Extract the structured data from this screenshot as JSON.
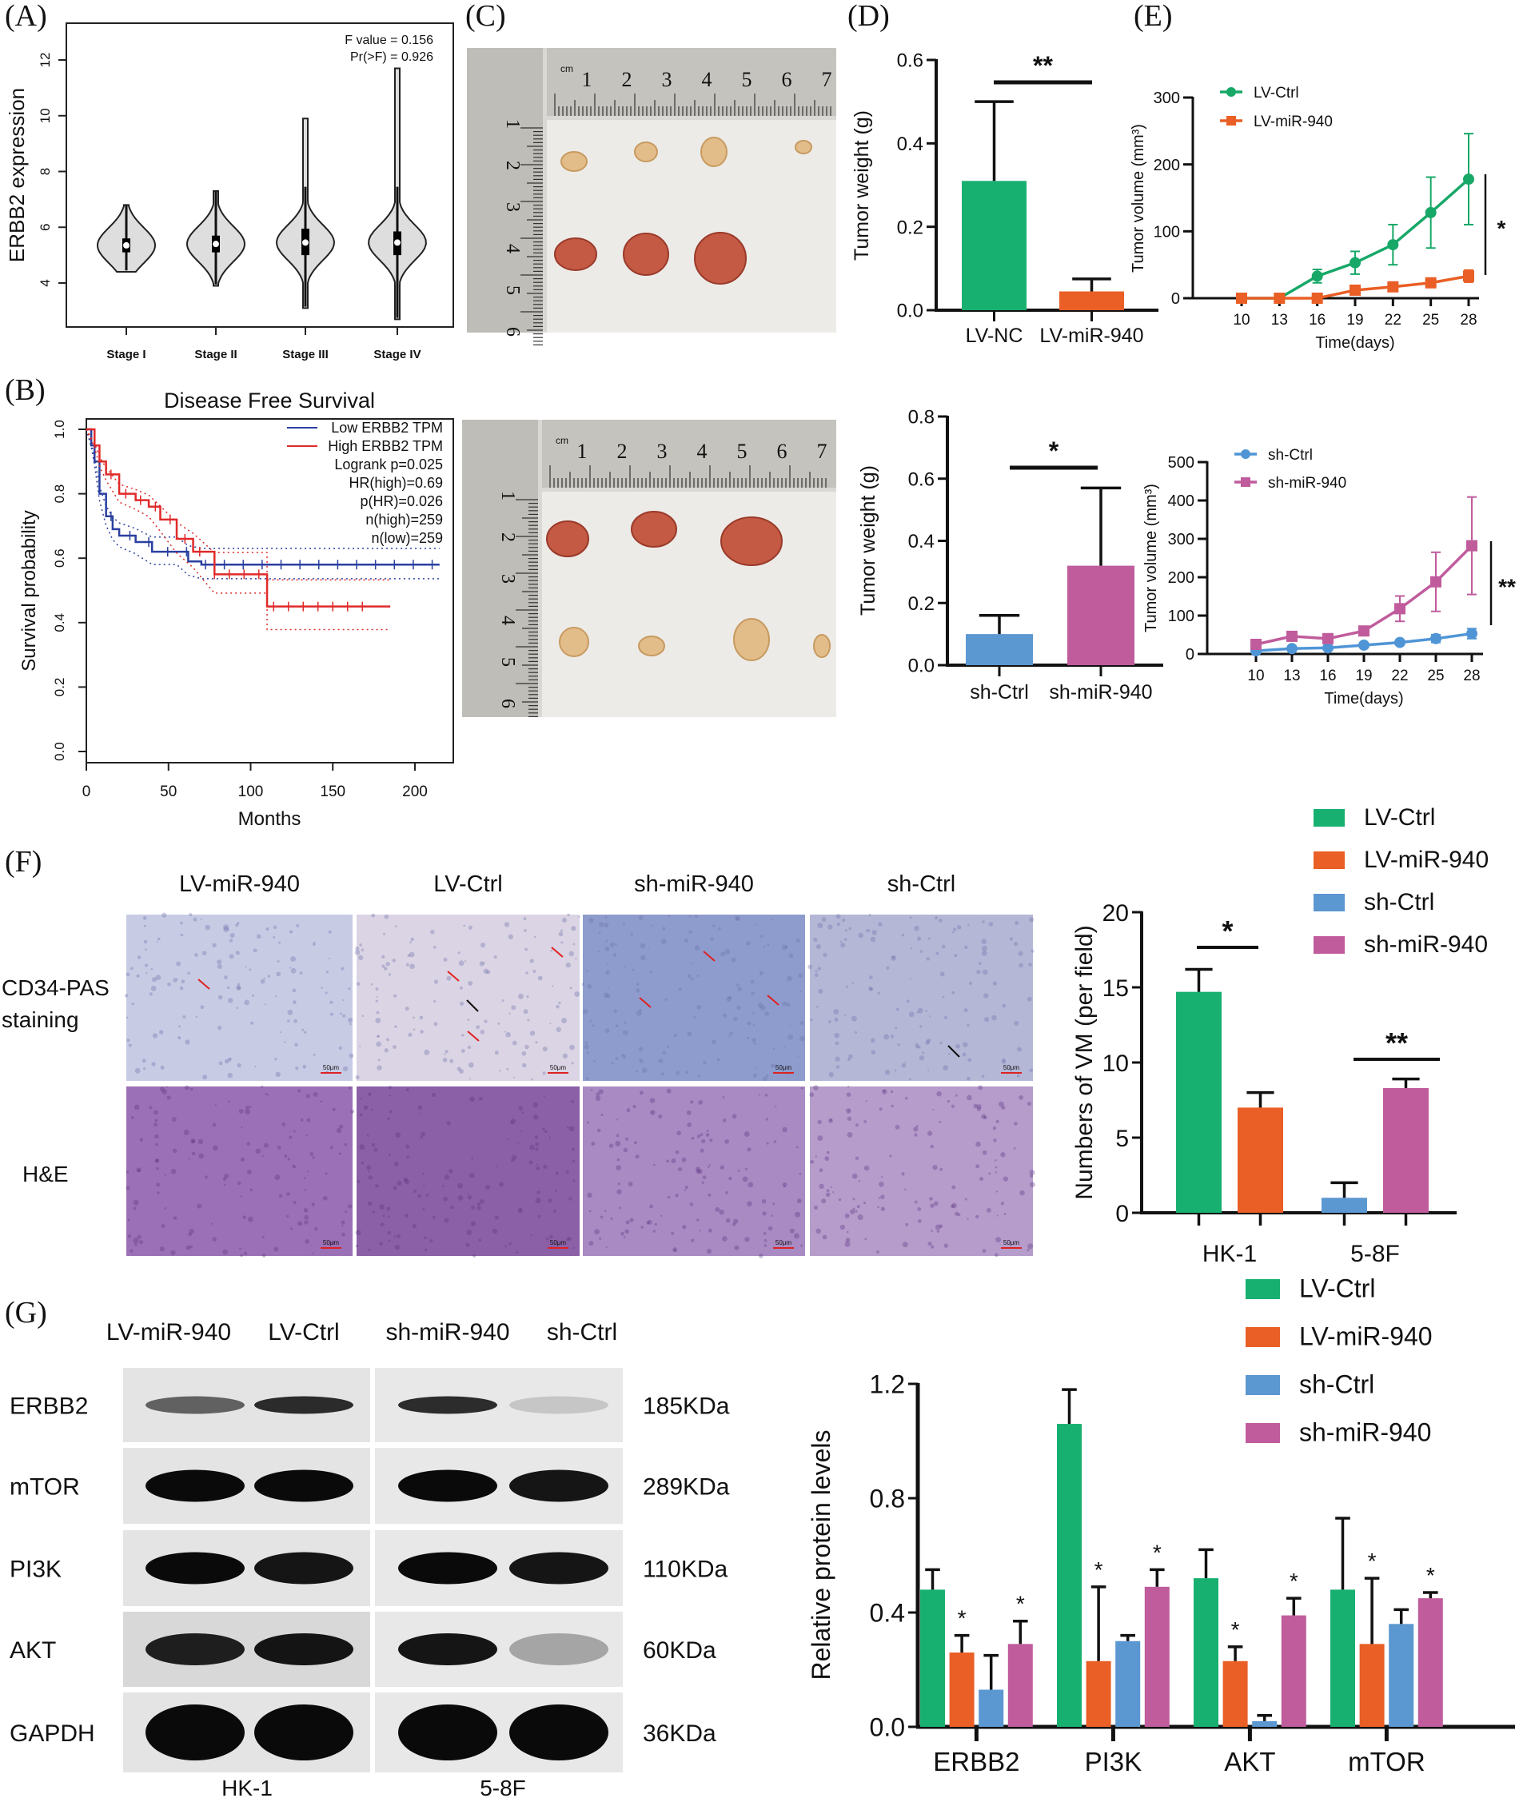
{
  "panel_labels": [
    "(A)",
    "(B)",
    "(C)",
    "(D)",
    "(E)",
    "(F)",
    "(G)"
  ],
  "photos": {
    "ruler_unit": "cm",
    "ruler_top": [
      "1",
      "2",
      "3",
      "4",
      "5",
      "6",
      "7"
    ],
    "ruler_left": [
      "1",
      "2",
      "3",
      "4",
      "5",
      "6"
    ]
  },
  "micrographs": {
    "columns": [
      "LV-miR-940",
      "LV-Ctrl",
      "sh-miR-940",
      "sh-Ctrl"
    ],
    "rows": [
      "CD34-PAS staining",
      "H&E"
    ],
    "scale_bar": "50μm"
  },
  "blots": {
    "lanes": [
      "LV-miR-940",
      "LV-Ctrl",
      "sh-miR-940",
      "sh-Ctrl"
    ],
    "cell_lines": [
      "HK-1",
      "5-8F"
    ],
    "rows": [
      {
        "protein": "ERBB2",
        "size": "185KDa",
        "intensity": [
          0.6,
          0.85,
          0.85,
          0.15
        ]
      },
      {
        "protein": "mTOR",
        "size": "289KDa",
        "intensity": [
          1,
          1,
          1,
          0.95
        ]
      },
      {
        "protein": "PI3K",
        "size": "110KDa",
        "intensity": [
          1,
          0.95,
          1,
          0.95
        ]
      },
      {
        "protein": "AKT",
        "size": "60KDa",
        "intensity": [
          0.9,
          0.95,
          0.95,
          0.3
        ]
      },
      {
        "protein": "GAPDH",
        "size": "36KDa",
        "intensity": [
          1,
          1,
          1,
          1
        ]
      }
    ]
  },
  "chart_data": [
    {
      "type": "violin",
      "ylabel": "ERBB2 expression",
      "yticks": [
        4,
        6,
        8,
        10,
        12
      ],
      "ylim": [
        2.5,
        13.5
      ],
      "categories": [
        "Stage I",
        "Stage II",
        "Stage III",
        "Stage IV"
      ],
      "median": [
        5.35,
        5.4,
        5.45,
        5.45
      ],
      "q1": [
        5.1,
        5.1,
        5.0,
        5.0
      ],
      "q3": [
        5.6,
        5.7,
        5.95,
        5.85
      ],
      "min": [
        4.4,
        3.9,
        3.1,
        2.7
      ],
      "max": [
        6.8,
        7.3,
        9.9,
        11.7
      ],
      "annotation": [
        "F value = 0.156",
        "Pr(>F) = 0.926"
      ]
    },
    {
      "type": "line",
      "title": "Disease Free Survival",
      "xlabel": "Months",
      "ylabel": "Survival probability",
      "xticks": [
        0,
        50,
        100,
        150,
        200
      ],
      "yticks": [
        "0.0",
        "0.2",
        "0.4",
        "0.6",
        "0.8",
        "1.0"
      ],
      "xlim": [
        0,
        220
      ],
      "ylim": [
        0,
        1
      ],
      "series": [
        {
          "name": "Low ERBB2 TPM",
          "color": "#2b3fa0",
          "points": [
            [
              0,
              1
            ],
            [
              3,
              0.95
            ],
            [
              5,
              0.9
            ],
            [
              8,
              0.8
            ],
            [
              12,
              0.73
            ],
            [
              16,
              0.69
            ],
            [
              20,
              0.67
            ],
            [
              30,
              0.65
            ],
            [
              40,
              0.62
            ],
            [
              55,
              0.62
            ],
            [
              62,
              0.59
            ],
            [
              70,
              0.58
            ],
            [
              215,
              0.58
            ]
          ]
        },
        {
          "name": "High ERBB2 TPM",
          "color": "#e02a2a",
          "points": [
            [
              0,
              1
            ],
            [
              5,
              0.95
            ],
            [
              8,
              0.9
            ],
            [
              12,
              0.86
            ],
            [
              20,
              0.8
            ],
            [
              30,
              0.78
            ],
            [
              38,
              0.76
            ],
            [
              45,
              0.72
            ],
            [
              55,
              0.66
            ],
            [
              65,
              0.62
            ],
            [
              78,
              0.55
            ],
            [
              110,
              0.55
            ],
            [
              110,
              0.45
            ],
            [
              185,
              0.45
            ]
          ]
        }
      ],
      "stats": [
        "Logrank p=0.025",
        "HR(high)=0.69",
        "p(HR)=0.026",
        "n(high)=259",
        "n(low)=259"
      ],
      "legend_position": "top-right"
    },
    {
      "type": "bar",
      "ylabel": "Tumor weight (g)",
      "categories": [
        "LV-NC",
        "LV-miR-940"
      ],
      "values": [
        0.31,
        0.045
      ],
      "errors": [
        0.19,
        0.03
      ],
      "colors": [
        "#17b070",
        "#e95f25"
      ],
      "yticks": [
        "0.0",
        "0.2",
        "0.4",
        "0.6"
      ],
      "ylim": [
        0,
        0.6
      ],
      "significance": "**"
    },
    {
      "type": "line",
      "ylabel": "Tumor volume (mm³)",
      "xlabel": "Time(days)",
      "x": [
        10,
        13,
        16,
        19,
        22,
        25,
        28
      ],
      "yticks": [
        "0",
        "100",
        "200",
        "300"
      ],
      "ylim": [
        0,
        300
      ],
      "series": [
        {
          "name": "LV-Ctrl",
          "color": "#17a868",
          "marker": "circle",
          "values": [
            0,
            0,
            33,
            53,
            80,
            128,
            178
          ],
          "errors": [
            0,
            0,
            10,
            17,
            30,
            53,
            68
          ]
        },
        {
          "name": "LV-miR-940",
          "color": "#e95f25",
          "marker": "square",
          "values": [
            0,
            0,
            0,
            12,
            17,
            23,
            33
          ],
          "errors": [
            0,
            0,
            0,
            4,
            4,
            6,
            9
          ]
        }
      ],
      "significance": "*"
    },
    {
      "type": "bar",
      "ylabel": "Tumor weight (g)",
      "categories": [
        "sh-Ctrl",
        "sh-miR-940"
      ],
      "values": [
        0.1,
        0.32
      ],
      "errors": [
        0.06,
        0.25
      ],
      "colors": [
        "#5b97d0",
        "#c05c9c"
      ],
      "yticks": [
        "0.0",
        "0.2",
        "0.4",
        "0.6",
        "0.8"
      ],
      "ylim": [
        0,
        0.8
      ],
      "significance": "*"
    },
    {
      "type": "line",
      "ylabel": "Tumor volume (mm³)",
      "xlabel": "Time(days)",
      "x": [
        10,
        13,
        16,
        19,
        22,
        25,
        28
      ],
      "yticks": [
        "0",
        "100",
        "200",
        "300",
        "400",
        "500"
      ],
      "ylim": [
        0,
        500
      ],
      "series": [
        {
          "name": "sh-Ctrl",
          "color": "#4f95d6",
          "marker": "circle",
          "values": [
            8,
            14,
            16,
            23,
            30,
            40,
            53
          ],
          "errors": [
            2,
            3,
            3,
            4,
            4,
            10,
            13
          ]
        },
        {
          "name": "sh-miR-940",
          "color": "#c05c9c",
          "marker": "square",
          "values": [
            25,
            46,
            40,
            60,
            118,
            188,
            282
          ],
          "errors": [
            5,
            8,
            8,
            6,
            33,
            77,
            127
          ]
        }
      ],
      "significance": "**"
    },
    {
      "type": "bar",
      "ylabel": "Numbers of VM (per field)",
      "categories": [
        "HK-1",
        "5-8F"
      ],
      "legend": [
        "LV-Ctrl",
        "LV-miR-940",
        "sh-Ctrl",
        "sh-miR-940"
      ],
      "colors": [
        "#17b070",
        "#e95f25",
        "#5b97d0",
        "#c05c9c"
      ],
      "groups": [
        {
          "series": [
            0,
            1
          ],
          "values": [
            14.7,
            7.0
          ],
          "errors": [
            1.5,
            1.0
          ],
          "significance": "*"
        },
        {
          "series": [
            2,
            3
          ],
          "values": [
            1.0,
            8.3
          ],
          "errors": [
            1.0,
            0.6
          ],
          "significance": "**"
        }
      ],
      "yticks": [
        "0",
        "5",
        "10",
        "15",
        "20"
      ],
      "ylim": [
        0,
        20
      ],
      "legend_position": "top-right"
    },
    {
      "type": "bar",
      "ylabel": "Relative protein levels",
      "categories": [
        "ERBB2",
        "PI3K",
        "AKT",
        "mTOR"
      ],
      "legend": [
        "LV-Ctrl",
        "LV-miR-940",
        "sh-Ctrl",
        "sh-miR-940"
      ],
      "colors": [
        "#17b070",
        "#e95f25",
        "#5b97d0",
        "#c05c9c"
      ],
      "values": [
        [
          0.48,
          0.26,
          0.13,
          0.29
        ],
        [
          1.06,
          0.23,
          0.3,
          0.49
        ],
        [
          0.52,
          0.23,
          0.02,
          0.39
        ],
        [
          0.48,
          0.29,
          0.36,
          0.45
        ]
      ],
      "errors": [
        [
          0.07,
          0.06,
          0.12,
          0.08
        ],
        [
          0.12,
          0.26,
          0.02,
          0.06
        ],
        [
          0.1,
          0.05,
          0.02,
          0.06
        ],
        [
          0.25,
          0.23,
          0.05,
          0.02
        ]
      ],
      "significance_marker": "*",
      "significant_series": [
        1,
        3
      ],
      "yticks": [
        "0.0",
        "0.4",
        "0.8",
        "1.2"
      ],
      "ylim": [
        0,
        1.2
      ],
      "legend_position": "top-right"
    }
  ]
}
